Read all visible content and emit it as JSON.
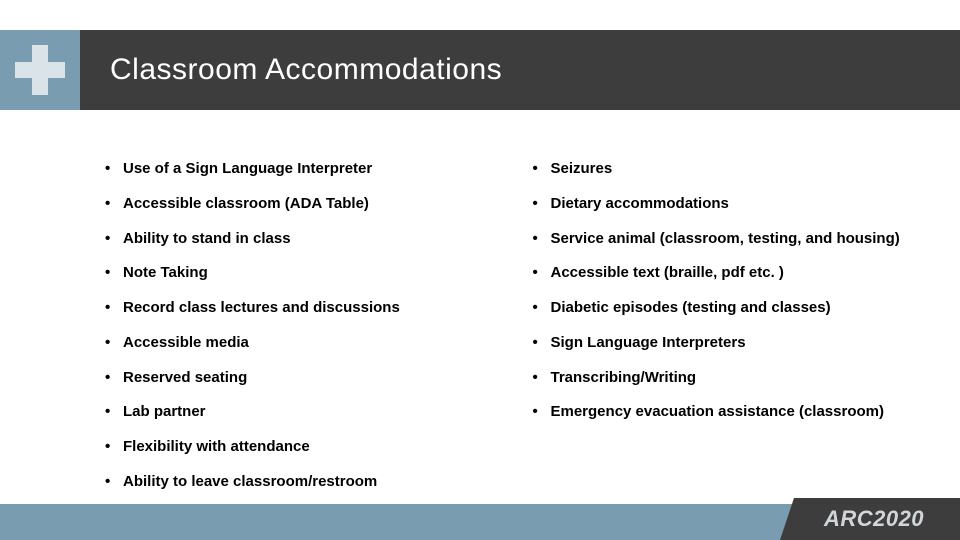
{
  "header": {
    "title": "Classroom Accommodations",
    "icon_name": "plus-icon",
    "band_color": "#3d3d3d",
    "icon_bg_color": "#7a9cb0",
    "icon_fg_color": "#d9e3e8",
    "title_color": "#ffffff",
    "title_fontsize": 30
  },
  "content": {
    "text_color": "#000000",
    "font_weight": "bold",
    "fontsize": 15,
    "left_column": [
      "Use of a Sign Language Interpreter",
      "Accessible classroom (ADA Table)",
      "Ability to stand in class",
      "Note Taking",
      "Record class lectures and discussions",
      "Accessible media",
      "Reserved seating",
      "Lab partner",
      "Flexibility with attendance",
      "Ability to leave classroom/restroom"
    ],
    "right_column": [
      "Seizures",
      "Dietary accommodations",
      "Service animal (classroom, testing, and housing)",
      "Accessible text  (braille, pdf etc. )",
      "Diabetic episodes (testing and classes)",
      "Sign Language Interpreters",
      "Transcribing/Writing",
      "Emergency evacuation assistance (classroom)"
    ]
  },
  "footer": {
    "band_color": "#7a9cb0",
    "logo_bg_color": "#3d3d3d",
    "logo_text": "ARC2020",
    "logo_text_color": "#d0d6d9"
  }
}
